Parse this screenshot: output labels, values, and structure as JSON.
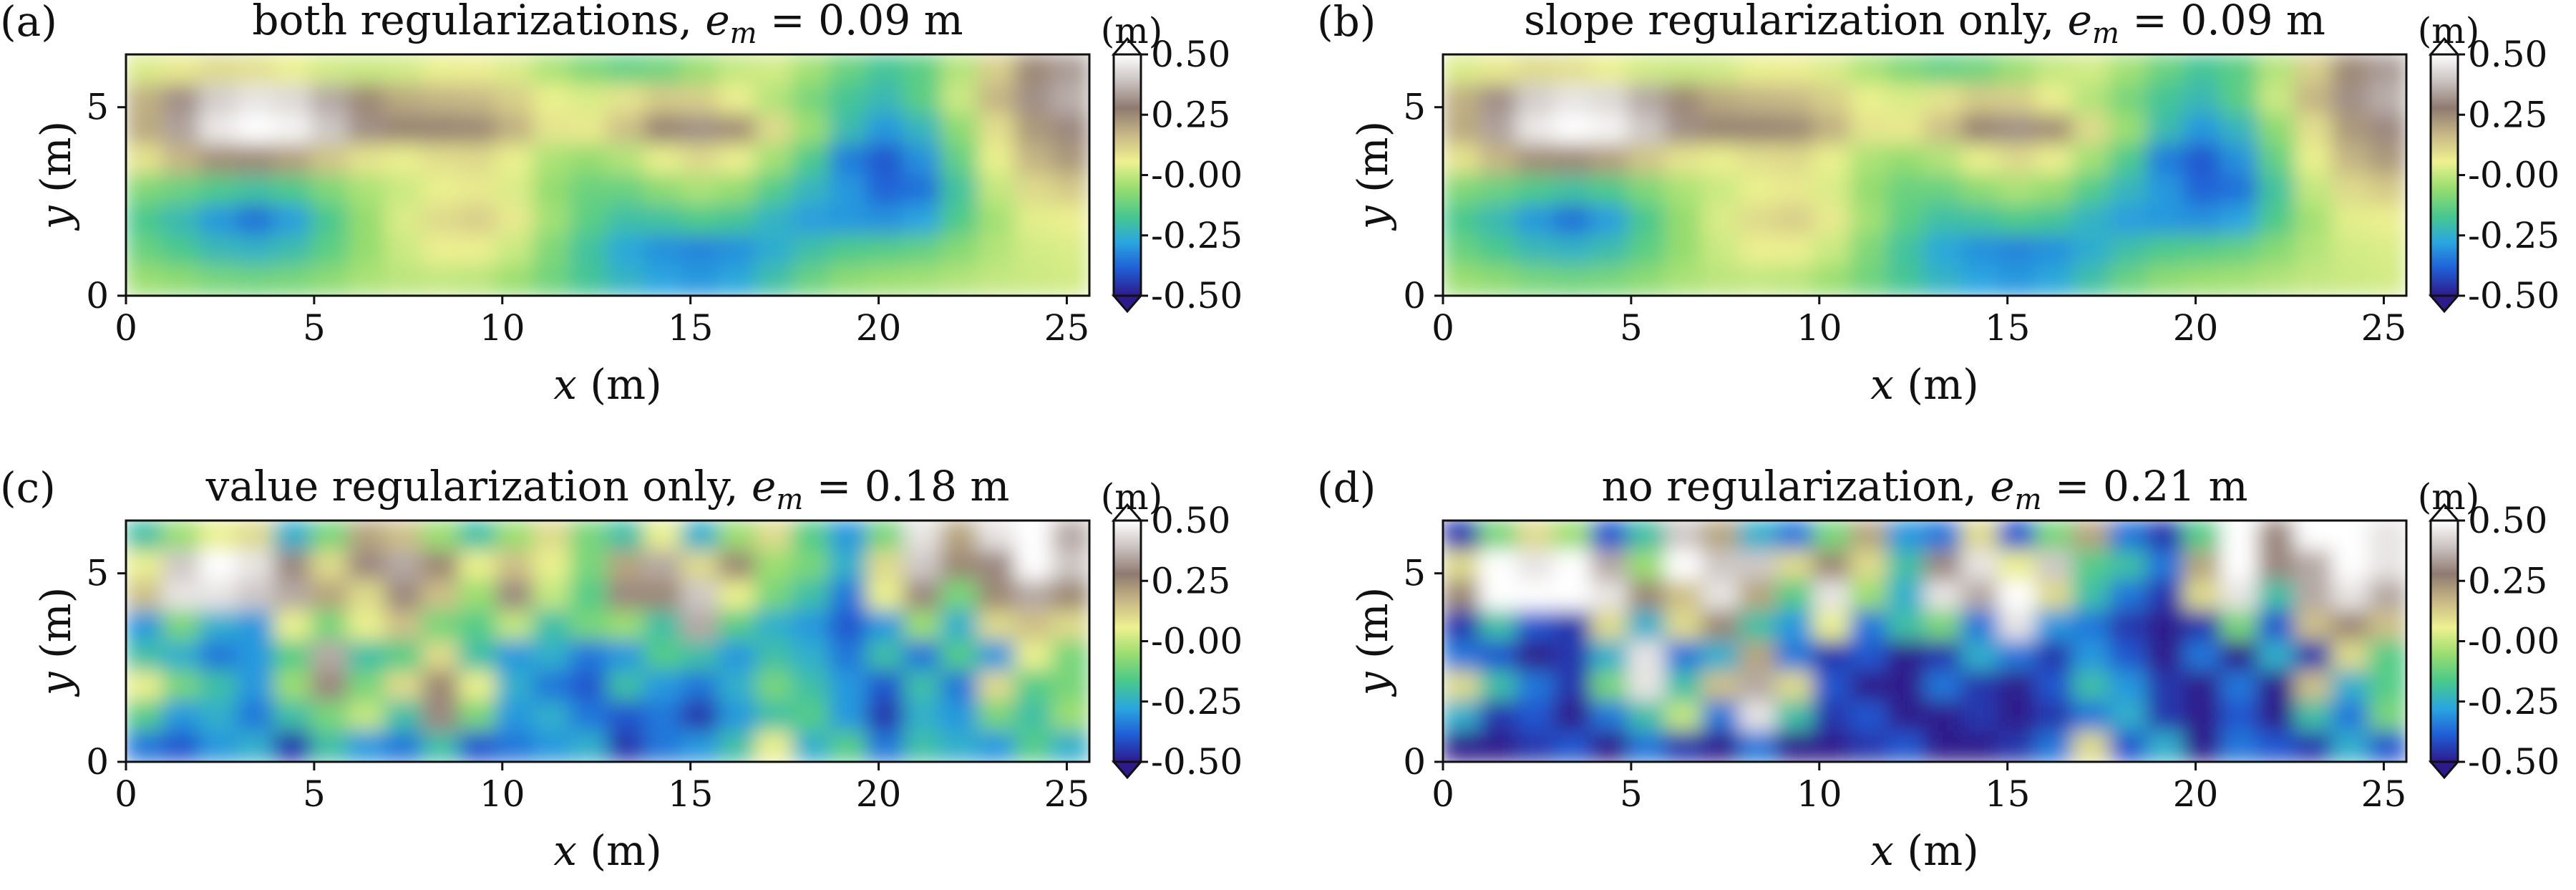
{
  "figure": {
    "colormap": [
      "#2d1a8c",
      "#1f5ed6",
      "#2aa6e0",
      "#49c98b",
      "#97dd6f",
      "#eef190",
      "#c7b786",
      "#8f7a70",
      "#c9c2c0",
      "#ffffff"
    ]
  },
  "chart_data": [
    {
      "type": "heatmap",
      "letter": "(a)",
      "title": "both regularizations, e",
      "title_sub": "m",
      "title_value": " = 0.09 m",
      "xlabel_var": "x",
      "xlabel_unit": " (m)",
      "ylabel_var": "y",
      "ylabel_unit": " (m)",
      "xlim": [
        0,
        25.6
      ],
      "ylim": [
        0,
        6.4
      ],
      "xticks": [
        0,
        5,
        10,
        15,
        20,
        25
      ],
      "yticks": [
        0,
        5
      ],
      "colorbar": {
        "unit": "(m)",
        "range": [
          -0.5,
          0.5
        ],
        "ticks": [
          "-0.50",
          "-0.25",
          "-0.00",
          "0.25",
          "0.50"
        ]
      },
      "grid": {
        "rows": 8,
        "cols": 26,
        "values": [
          [
            0.03,
            0.07,
            0.1,
            0.09,
            0.05,
            0.02,
            0.01,
            0.02,
            0.05,
            0.06,
            0.03,
            -0.03,
            -0.09,
            -0.13,
            -0.11,
            -0.05,
            0.0,
            0.02,
            -0.04,
            -0.12,
            -0.18,
            -0.14,
            -0.02,
            0.12,
            0.25,
            0.33
          ],
          [
            0.18,
            0.31,
            0.41,
            0.45,
            0.43,
            0.35,
            0.25,
            0.19,
            0.17,
            0.16,
            0.12,
            0.05,
            0.03,
            0.08,
            0.13,
            0.12,
            0.06,
            -0.02,
            -0.1,
            -0.18,
            -0.22,
            -0.14,
            0.01,
            0.17,
            0.31,
            0.36
          ],
          [
            0.19,
            0.34,
            0.46,
            0.5,
            0.48,
            0.4,
            0.31,
            0.26,
            0.26,
            0.25,
            0.18,
            0.08,
            0.07,
            0.15,
            0.26,
            0.31,
            0.24,
            0.1,
            -0.05,
            -0.21,
            -0.3,
            -0.23,
            -0.07,
            0.09,
            0.22,
            0.3
          ],
          [
            0.08,
            0.17,
            0.24,
            0.25,
            0.21,
            0.14,
            0.08,
            0.06,
            0.09,
            0.1,
            0.05,
            -0.03,
            -0.06,
            -0.02,
            0.05,
            0.1,
            0.06,
            -0.04,
            -0.16,
            -0.34,
            -0.4,
            -0.31,
            -0.13,
            0.05,
            0.17,
            0.22
          ],
          [
            -0.09,
            -0.12,
            -0.16,
            -0.19,
            -0.16,
            -0.09,
            -0.03,
            0.01,
            0.05,
            0.07,
            0.03,
            -0.06,
            -0.12,
            -0.12,
            -0.07,
            -0.03,
            -0.06,
            -0.15,
            -0.23,
            -0.3,
            -0.38,
            -0.36,
            -0.19,
            0.0,
            0.1,
            0.13
          ],
          [
            -0.17,
            -0.22,
            -0.3,
            -0.36,
            -0.29,
            -0.17,
            -0.06,
            0.03,
            0.1,
            0.12,
            0.07,
            -0.04,
            -0.14,
            -0.2,
            -0.19,
            -0.16,
            -0.18,
            -0.24,
            -0.29,
            -0.3,
            -0.31,
            -0.28,
            -0.16,
            -0.04,
            0.04,
            0.06
          ],
          [
            -0.12,
            -0.17,
            -0.22,
            -0.24,
            -0.21,
            -0.14,
            -0.06,
            0.01,
            0.06,
            0.06,
            0.01,
            -0.09,
            -0.19,
            -0.27,
            -0.31,
            -0.33,
            -0.31,
            -0.26,
            -0.2,
            -0.16,
            -0.15,
            -0.13,
            -0.08,
            -0.02,
            0.02,
            0.03
          ],
          [
            -0.05,
            -0.07,
            -0.1,
            -0.11,
            -0.1,
            -0.07,
            -0.03,
            -0.01,
            0.0,
            -0.01,
            -0.05,
            -0.11,
            -0.18,
            -0.24,
            -0.28,
            -0.3,
            -0.27,
            -0.2,
            -0.12,
            -0.07,
            -0.05,
            -0.04,
            -0.02,
            0.0,
            0.01,
            0.02
          ]
        ]
      }
    },
    {
      "type": "heatmap",
      "letter": "(b)",
      "title": "slope regularization only, e",
      "title_sub": "m",
      "title_value": " = 0.09 m",
      "xlabel_var": "x",
      "xlabel_unit": " (m)",
      "ylabel_var": "y",
      "ylabel_unit": " (m)",
      "xlim": [
        0,
        25.6
      ],
      "ylim": [
        0,
        6.4
      ],
      "xticks": [
        0,
        5,
        10,
        15,
        20,
        25
      ],
      "yticks": [
        0,
        5
      ],
      "colorbar": {
        "unit": "(m)",
        "range": [
          -0.5,
          0.5
        ],
        "ticks": [
          "-0.50",
          "-0.25",
          "-0.00",
          "0.25",
          "0.50"
        ]
      },
      "grid": {
        "rows": 8,
        "cols": 26,
        "values": [
          [
            0.03,
            0.07,
            0.1,
            0.09,
            0.05,
            0.02,
            0.01,
            0.02,
            0.05,
            0.06,
            0.03,
            -0.03,
            -0.09,
            -0.13,
            -0.11,
            -0.05,
            0.0,
            0.02,
            -0.04,
            -0.12,
            -0.18,
            -0.14,
            -0.02,
            0.12,
            0.25,
            0.33
          ],
          [
            0.18,
            0.31,
            0.41,
            0.45,
            0.43,
            0.35,
            0.25,
            0.19,
            0.17,
            0.16,
            0.12,
            0.05,
            0.03,
            0.08,
            0.13,
            0.12,
            0.06,
            -0.02,
            -0.1,
            -0.18,
            -0.22,
            -0.14,
            0.01,
            0.17,
            0.31,
            0.36
          ],
          [
            0.19,
            0.34,
            0.46,
            0.5,
            0.48,
            0.4,
            0.31,
            0.26,
            0.26,
            0.25,
            0.18,
            0.08,
            0.07,
            0.15,
            0.26,
            0.31,
            0.24,
            0.1,
            -0.05,
            -0.21,
            -0.3,
            -0.23,
            -0.07,
            0.09,
            0.22,
            0.3
          ],
          [
            0.08,
            0.17,
            0.24,
            0.25,
            0.21,
            0.14,
            0.08,
            0.06,
            0.09,
            0.1,
            0.05,
            -0.03,
            -0.06,
            -0.02,
            0.05,
            0.1,
            0.06,
            -0.04,
            -0.16,
            -0.34,
            -0.4,
            -0.31,
            -0.13,
            0.05,
            0.17,
            0.22
          ],
          [
            -0.09,
            -0.12,
            -0.16,
            -0.19,
            -0.16,
            -0.09,
            -0.03,
            0.01,
            0.05,
            0.07,
            0.03,
            -0.06,
            -0.12,
            -0.12,
            -0.07,
            -0.03,
            -0.06,
            -0.15,
            -0.23,
            -0.3,
            -0.38,
            -0.36,
            -0.19,
            0.0,
            0.1,
            0.13
          ],
          [
            -0.17,
            -0.22,
            -0.3,
            -0.36,
            -0.29,
            -0.17,
            -0.06,
            0.03,
            0.1,
            0.12,
            0.07,
            -0.04,
            -0.14,
            -0.2,
            -0.19,
            -0.16,
            -0.18,
            -0.24,
            -0.29,
            -0.3,
            -0.31,
            -0.28,
            -0.16,
            -0.04,
            0.04,
            0.06
          ],
          [
            -0.12,
            -0.17,
            -0.22,
            -0.24,
            -0.21,
            -0.14,
            -0.06,
            0.01,
            0.06,
            0.06,
            0.01,
            -0.09,
            -0.19,
            -0.27,
            -0.31,
            -0.33,
            -0.31,
            -0.26,
            -0.2,
            -0.16,
            -0.15,
            -0.13,
            -0.08,
            -0.02,
            0.02,
            0.03
          ],
          [
            -0.05,
            -0.07,
            -0.1,
            -0.11,
            -0.1,
            -0.07,
            -0.03,
            -0.01,
            0.0,
            -0.01,
            -0.05,
            -0.11,
            -0.18,
            -0.24,
            -0.28,
            -0.3,
            -0.27,
            -0.2,
            -0.12,
            -0.07,
            -0.05,
            -0.04,
            -0.02,
            0.0,
            0.01,
            0.02
          ]
        ]
      }
    },
    {
      "type": "heatmap",
      "letter": "(c)",
      "title": "value regularization only, e",
      "title_sub": "m",
      "title_value": " = 0.18 m",
      "xlabel_var": "x",
      "xlabel_unit": " (m)",
      "ylabel_var": "y",
      "ylabel_unit": " (m)",
      "xlim": [
        0,
        25.6
      ],
      "ylim": [
        0,
        6.4
      ],
      "xticks": [
        0,
        5,
        10,
        15,
        20,
        25
      ],
      "yticks": [
        0,
        5
      ],
      "colorbar": {
        "unit": "(m)",
        "range": [
          -0.5,
          0.5
        ],
        "ticks": [
          "-0.50",
          "-0.25",
          "-0.00",
          "0.25",
          "0.50"
        ]
      },
      "grid": {
        "rows": 8,
        "cols": 26,
        "values": [
          [
            -0.2,
            -0.05,
            0.05,
            0.1,
            -0.25,
            -0.1,
            0.2,
            0.15,
            -0.05,
            -0.2,
            -0.05,
            0.1,
            -0.1,
            -0.2,
            0.05,
            -0.25,
            -0.05,
            0.1,
            -0.15,
            -0.3,
            -0.1,
            0.45,
            0.2,
            0.45,
            0.5,
            0.35
          ],
          [
            0.05,
            0.4,
            0.5,
            0.45,
            0.3,
            0.1,
            0.3,
            0.35,
            0.25,
            0.05,
            0.15,
            0.05,
            -0.1,
            0.2,
            0.35,
            0.1,
            0.25,
            -0.05,
            -0.1,
            -0.25,
            0.1,
            0.4,
            0.25,
            0.3,
            0.5,
            0.4
          ],
          [
            0.15,
            0.45,
            0.45,
            0.4,
            0.35,
            0.2,
            0.1,
            0.3,
            0.15,
            -0.05,
            0.3,
            0.0,
            -0.15,
            0.3,
            0.25,
            0.4,
            0.05,
            -0.1,
            -0.2,
            -0.35,
            0.05,
            0.3,
            -0.1,
            0.25,
            0.35,
            0.25
          ],
          [
            -0.3,
            -0.1,
            -0.25,
            -0.3,
            0.05,
            -0.1,
            0.05,
            0.15,
            -0.1,
            -0.15,
            0.0,
            -0.2,
            -0.1,
            -0.05,
            -0.2,
            0.35,
            -0.15,
            -0.25,
            -0.3,
            -0.4,
            -0.3,
            -0.05,
            -0.25,
            0.1,
            0.15,
            0.1
          ],
          [
            -0.2,
            -0.25,
            -0.35,
            -0.3,
            -0.15,
            0.35,
            -0.2,
            -0.15,
            0.1,
            -0.2,
            -0.3,
            -0.25,
            -0.35,
            -0.3,
            -0.15,
            -0.2,
            -0.3,
            -0.2,
            -0.25,
            -0.35,
            -0.2,
            -0.35,
            -0.15,
            -0.3,
            0.05,
            -0.1
          ],
          [
            0.05,
            -0.1,
            -0.2,
            -0.3,
            -0.05,
            0.3,
            -0.1,
            0.1,
            0.25,
            0.05,
            -0.25,
            -0.35,
            -0.4,
            -0.2,
            -0.3,
            -0.35,
            -0.25,
            -0.1,
            -0.2,
            -0.3,
            -0.4,
            -0.2,
            -0.35,
            0.1,
            -0.15,
            -0.1
          ],
          [
            -0.15,
            -0.3,
            -0.25,
            -0.35,
            -0.2,
            -0.1,
            0.0,
            -0.2,
            0.3,
            -0.1,
            -0.3,
            -0.25,
            -0.35,
            -0.4,
            -0.35,
            -0.45,
            -0.3,
            -0.2,
            -0.15,
            -0.3,
            -0.45,
            -0.25,
            -0.3,
            -0.1,
            -0.2,
            -0.05
          ],
          [
            -0.35,
            -0.4,
            -0.3,
            -0.25,
            -0.45,
            -0.2,
            -0.3,
            -0.35,
            -0.2,
            -0.4,
            -0.35,
            -0.3,
            -0.25,
            -0.45,
            -0.35,
            -0.3,
            -0.2,
            0.05,
            -0.25,
            -0.15,
            -0.35,
            -0.2,
            -0.25,
            -0.3,
            -0.15,
            -0.25
          ]
        ]
      }
    },
    {
      "type": "heatmap",
      "letter": "(d)",
      "title": "no regularization, e",
      "title_sub": "m",
      "title_value": " = 0.21 m",
      "xlabel_var": "x",
      "xlabel_unit": " (m)",
      "ylabel_var": "y",
      "ylabel_unit": " (m)",
      "xlim": [
        0,
        25.6
      ],
      "ylim": [
        0,
        6.4
      ],
      "xticks": [
        0,
        5,
        10,
        15,
        20,
        25
      ],
      "yticks": [
        0,
        5
      ],
      "colorbar": {
        "unit": "(m)",
        "range": [
          -0.5,
          0.5
        ],
        "ticks": [
          "-0.50",
          "-0.25",
          "-0.00",
          "0.25",
          "0.50"
        ]
      },
      "grid": {
        "rows": 8,
        "cols": 26,
        "values": [
          [
            -0.45,
            -0.1,
            0.1,
            -0.05,
            -0.4,
            -0.2,
            0.4,
            0.2,
            -0.25,
            -0.35,
            -0.1,
            0.2,
            -0.3,
            -0.35,
            0.1,
            -0.4,
            -0.1,
            0.2,
            -0.35,
            -0.45,
            -0.15,
            0.5,
            0.3,
            0.5,
            0.5,
            0.45
          ],
          [
            0.1,
            0.5,
            0.45,
            0.5,
            0.35,
            -0.05,
            0.5,
            0.4,
            0.4,
            0.1,
            0.25,
            0.1,
            -0.2,
            0.3,
            0.45,
            0.05,
            0.4,
            -0.15,
            -0.2,
            -0.35,
            0.2,
            0.5,
            0.3,
            0.35,
            0.5,
            0.45
          ],
          [
            0.25,
            0.5,
            0.5,
            0.5,
            0.45,
            0.25,
            0.15,
            0.45,
            0.2,
            -0.15,
            0.45,
            -0.05,
            -0.25,
            0.45,
            0.35,
            0.5,
            0.1,
            -0.2,
            -0.35,
            -0.45,
            0.1,
            0.45,
            -0.2,
            0.35,
            0.45,
            0.35
          ],
          [
            -0.45,
            -0.2,
            -0.4,
            -0.45,
            0.1,
            -0.25,
            0.1,
            0.25,
            -0.2,
            -0.3,
            0.05,
            -0.35,
            -0.2,
            -0.1,
            -0.35,
            0.45,
            -0.3,
            -0.35,
            -0.45,
            -0.5,
            -0.45,
            -0.1,
            -0.4,
            0.15,
            0.25,
            0.15
          ],
          [
            -0.35,
            -0.4,
            -0.5,
            -0.45,
            -0.25,
            0.45,
            -0.35,
            -0.25,
            0.2,
            -0.35,
            -0.45,
            -0.4,
            -0.5,
            -0.45,
            -0.25,
            -0.35,
            -0.45,
            -0.3,
            -0.4,
            -0.5,
            -0.35,
            -0.5,
            -0.25,
            -0.45,
            0.1,
            -0.15
          ],
          [
            0.1,
            -0.2,
            -0.35,
            -0.45,
            -0.1,
            0.45,
            -0.2,
            0.15,
            0.35,
            0.1,
            -0.4,
            -0.5,
            -0.5,
            -0.35,
            -0.45,
            -0.5,
            -0.4,
            -0.2,
            -0.3,
            -0.45,
            -0.5,
            -0.35,
            -0.5,
            0.15,
            -0.25,
            -0.15
          ],
          [
            -0.25,
            -0.45,
            -0.4,
            -0.5,
            -0.35,
            -0.2,
            0.0,
            -0.35,
            0.45,
            -0.2,
            -0.45,
            -0.4,
            -0.5,
            -0.5,
            -0.45,
            -0.5,
            -0.45,
            -0.35,
            -0.25,
            -0.45,
            -0.5,
            -0.4,
            -0.5,
            -0.2,
            -0.35,
            -0.1
          ],
          [
            -0.5,
            -0.5,
            -0.45,
            -0.4,
            -0.5,
            -0.35,
            -0.45,
            -0.5,
            -0.35,
            -0.5,
            -0.5,
            -0.45,
            -0.4,
            -0.5,
            -0.5,
            -0.45,
            -0.35,
            0.1,
            -0.4,
            -0.25,
            -0.5,
            -0.35,
            -0.4,
            -0.45,
            -0.25,
            -0.4
          ]
        ]
      }
    }
  ]
}
